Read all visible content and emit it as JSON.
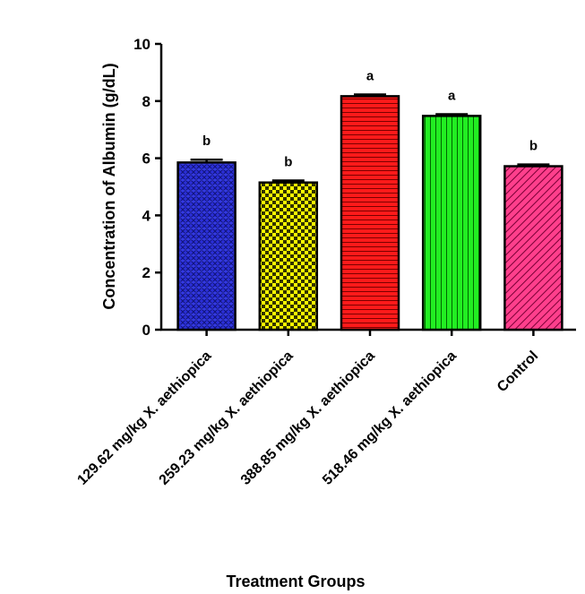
{
  "chart_data": {
    "type": "bar",
    "title": "",
    "xlabel": "Treatment Groups",
    "ylabel": "Concentration of Albumin (g/dL)",
    "ylim": [
      0,
      10
    ],
    "yticks": [
      0,
      2,
      4,
      6,
      8,
      10
    ],
    "grid": false,
    "categories": [
      "129.62 mg/kg X. aethiopica",
      "259.23 mg/kg X. aethiopica",
      "388.85 mg/kg X. aethiopica",
      "518.46 mg/kg X. aethiopica",
      "Control"
    ],
    "values": [
      5.85,
      5.15,
      8.17,
      7.48,
      5.72
    ],
    "errors": [
      0.1,
      0.07,
      0.06,
      0.06,
      0.06
    ],
    "significance_labels": [
      "b",
      "b",
      "a",
      "a",
      "b"
    ],
    "bar_colors": [
      "#2b2fd9",
      "#ffff00",
      "#ff1a1a",
      "#22ee22",
      "#ff3f8c"
    ],
    "bar_patterns": [
      "crosshatch-blue",
      "checker-yellow",
      "horizontal-lines-red",
      "vertical-lines-green",
      "diagonal-lines-pink"
    ]
  }
}
